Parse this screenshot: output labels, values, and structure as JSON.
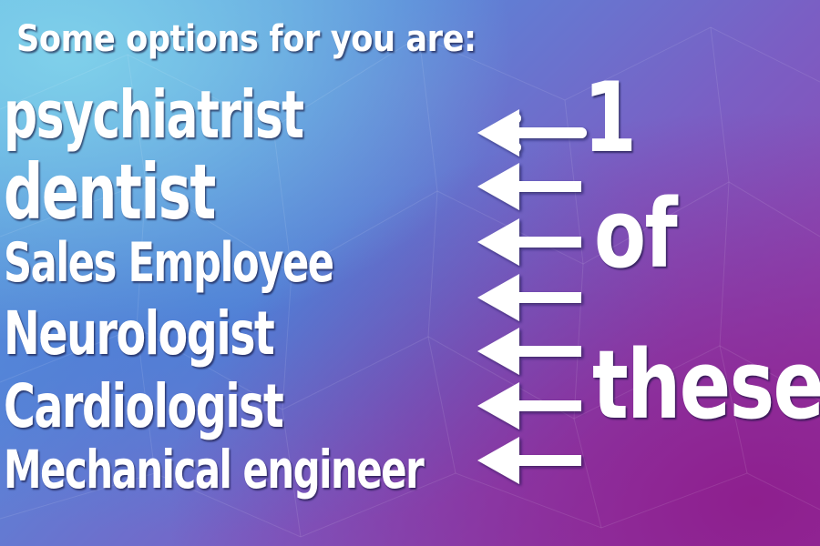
{
  "heading": "Some options for you are:",
  "options": [
    "psychiatrist",
    "dentist",
    "Sales Employee",
    "Neurologist",
    "Cardiologist",
    "Mechanical engineer"
  ],
  "side_words": [
    "1",
    "of",
    "these"
  ],
  "colors": {
    "text": "#ffffff",
    "bg_top_left": "#7fd0ea",
    "bg_mid": "#5a86d8",
    "bg_bottom_right": "#8e1f8e"
  },
  "icons": [
    "left-arrow-icon"
  ]
}
